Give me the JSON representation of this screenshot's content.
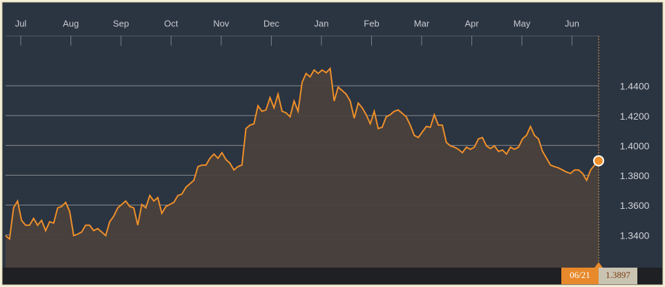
{
  "chart_data": {
    "type": "line",
    "month_labels": [
      "Jul",
      "Aug",
      "Sep",
      "Oct",
      "Nov",
      "Dec",
      "Jan",
      "Feb",
      "Mar",
      "Apr",
      "May",
      "Jun"
    ],
    "series": [
      {
        "color": "#f0902a",
        "values": [
          1.3395,
          1.3372,
          1.3581,
          1.3627,
          1.3497,
          1.3465,
          1.3465,
          1.3511,
          1.3465,
          1.3497,
          1.3428,
          1.3488,
          1.3479,
          1.3581,
          1.359,
          1.3618,
          1.3557,
          1.3395,
          1.3405,
          1.3419,
          1.3465,
          1.3465,
          1.3428,
          1.3442,
          1.3419,
          1.3395,
          1.3488,
          1.3525,
          1.3581,
          1.3604,
          1.3627,
          1.359,
          1.3581,
          1.3465,
          1.3604,
          1.3581,
          1.3664,
          1.3627,
          1.365,
          1.3544,
          1.359,
          1.3604,
          1.3618,
          1.3664,
          1.3673,
          1.3719,
          1.3743,
          1.3766,
          1.3858,
          1.3868,
          1.3868,
          1.3914,
          1.3942,
          1.3914,
          1.3951,
          1.3905,
          1.3881,
          1.3835,
          1.3858,
          1.3868,
          1.4113,
          1.4136,
          1.4145,
          1.4266,
          1.4229,
          1.4238,
          1.4321,
          1.4252,
          1.4344,
          1.4229,
          1.4219,
          1.4192,
          1.4298,
          1.4229,
          1.4423,
          1.4483,
          1.446,
          1.4506,
          1.4483,
          1.4506,
          1.4488,
          1.4516,
          1.4298,
          1.4391,
          1.4368,
          1.4344,
          1.4298,
          1.4182,
          1.4284,
          1.4252,
          1.4206,
          1.4145,
          1.4229,
          1.4113,
          1.4122,
          1.4192,
          1.4206,
          1.4229,
          1.4238,
          1.4215,
          1.4192,
          1.4136,
          1.4067,
          1.4053,
          1.409,
          1.4127,
          1.4122,
          1.4206,
          1.4136,
          1.4136,
          1.402,
          1.3997,
          1.3988,
          1.3974,
          1.3951,
          1.3988,
          1.3974,
          1.3988,
          1.4044,
          1.4053,
          1.3997,
          1.3979,
          1.3997,
          1.396,
          1.3969,
          1.3942,
          1.3988,
          1.3974,
          1.3988,
          1.4044,
          1.4067,
          1.4127,
          1.4067,
          1.4044,
          1.396,
          1.3914,
          1.3868,
          1.3858,
          1.3849,
          1.3835,
          1.3821,
          1.3812,
          1.3835,
          1.3835,
          1.3812,
          1.3766,
          1.3835,
          1.3868,
          1.3897
        ]
      }
    ],
    "ylim": [
      1.318,
      1.466
    ],
    "yticks": [
      {
        "value": 1.34,
        "label": "1.3400"
      },
      {
        "value": 1.36,
        "label": "1.3600"
      },
      {
        "value": 1.38,
        "label": "1.3800"
      },
      {
        "value": 1.4,
        "label": "1.4000"
      },
      {
        "value": 1.42,
        "label": "1.4200"
      },
      {
        "value": 1.44,
        "label": "1.4400"
      }
    ],
    "grid": true,
    "last_date": "06/21"
  }
}
